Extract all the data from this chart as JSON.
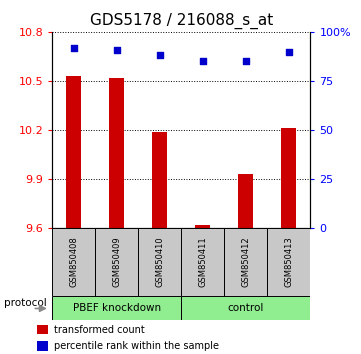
{
  "title": "GDS5178 / 216088_s_at",
  "samples": [
    "GSM850408",
    "GSM850409",
    "GSM850410",
    "GSM850411",
    "GSM850412",
    "GSM850413"
  ],
  "transformed_counts": [
    10.53,
    10.52,
    10.19,
    9.62,
    9.93,
    10.21
  ],
  "percentile_ranks": [
    92,
    91,
    88,
    85,
    85,
    90
  ],
  "ylim_left": [
    9.6,
    10.8
  ],
  "yticks_left": [
    9.6,
    9.9,
    10.2,
    10.5,
    10.8
  ],
  "ylim_right": [
    0,
    100
  ],
  "yticks_right": [
    0,
    25,
    50,
    75,
    100
  ],
  "ytick_labels_right": [
    "0",
    "25",
    "50",
    "75",
    "100%"
  ],
  "bar_color": "#cc0000",
  "dot_color": "#0000cc",
  "group1_label": "PBEF knockdown",
  "group2_label": "control",
  "protocol_label": "protocol",
  "legend_bar_label": "transformed count",
  "legend_dot_label": "percentile rank within the sample",
  "bar_width": 0.35,
  "group_bg_color": "#c8c8c8",
  "group_box_color": "#90ee90",
  "title_fontsize": 11,
  "tick_fontsize": 8,
  "base_value": 9.6
}
